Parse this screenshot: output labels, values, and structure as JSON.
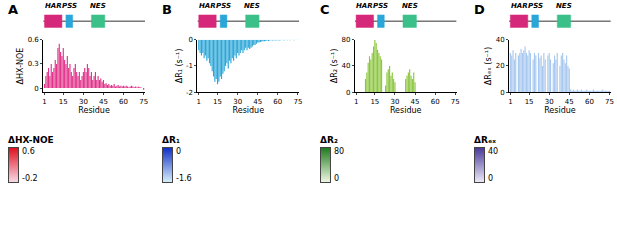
{
  "chart_data": [
    {
      "type": "bar",
      "panel": "A",
      "color": "#e0338a",
      "ylabel": "ΔHX-NOE",
      "xlabel": "Residue",
      "x": [
        1,
        2,
        3,
        4,
        5,
        6,
        7,
        8,
        9,
        10,
        11,
        12,
        13,
        14,
        15,
        16,
        17,
        18,
        19,
        20,
        21,
        22,
        23,
        24,
        25,
        26,
        27,
        28,
        29,
        30,
        31,
        32,
        33,
        34,
        35,
        36,
        37,
        38,
        39,
        40,
        41,
        42,
        43,
        44,
        45,
        46,
        47,
        48,
        49,
        50,
        51,
        52,
        53,
        54,
        55,
        56,
        57,
        58,
        59,
        60,
        61,
        62,
        63,
        64,
        65,
        66,
        67,
        68,
        69,
        70,
        71,
        72,
        73,
        74,
        75
      ],
      "values": [
        0.05,
        0.15,
        0.2,
        0.25,
        0.15,
        0.3,
        0.2,
        0.25,
        0.35,
        0.3,
        0.5,
        0.55,
        0.45,
        0.4,
        0.5,
        0.35,
        0.3,
        0.4,
        0.25,
        0.3,
        0.2,
        0.15,
        0.25,
        0.3,
        0.2,
        0.15,
        0.2,
        0.1,
        0.15,
        0.2,
        0.25,
        0.2,
        0.3,
        0.25,
        0.15,
        0.2,
        0.1,
        0.15,
        0.2,
        0.1,
        0.15,
        0.1,
        0.12,
        0.08,
        0.1,
        0.05,
        0.06,
        0.04,
        0.05,
        0.03,
        0.04,
        0.03,
        0.05,
        0.02,
        0.03,
        0.04,
        0.02,
        0.03,
        0.02,
        0.03,
        0.02,
        0.03,
        0.02,
        0.01,
        0.02,
        0.03,
        0.02,
        0.01,
        0.02,
        0.01,
        0.02,
        0.01,
        0.01,
        0,
        -0.02
      ],
      "xlim": [
        0,
        76
      ],
      "xticks": [
        1,
        15,
        30,
        45,
        60,
        75
      ],
      "ylim": [
        -0.05,
        0.6
      ],
      "yticks": [
        0,
        0.3,
        0.6
      ],
      "domains": [
        {
          "name": "HAR",
          "start": 1,
          "end": 14,
          "color": "#d6287a"
        },
        {
          "name": "PSS",
          "start": 17,
          "end": 22,
          "color": "#2aa6d8"
        },
        {
          "name": "NES",
          "start": 36,
          "end": 46,
          "color": "#3cc08a"
        }
      ],
      "colorbar": {
        "title": "ΔHX-NOE",
        "max": 0.6,
        "min": -0.2,
        "colors": [
          "#f7d9e6",
          "#e0101f"
        ]
      }
    },
    {
      "type": "bar",
      "panel": "B",
      "color": "#2aa6d8",
      "ylabel": "ΔR₁ (s⁻¹)",
      "xlabel": "Residue",
      "x": [
        1,
        2,
        3,
        4,
        5,
        6,
        7,
        8,
        9,
        10,
        11,
        12,
        13,
        14,
        15,
        16,
        17,
        18,
        19,
        20,
        21,
        22,
        23,
        24,
        25,
        26,
        27,
        28,
        29,
        30,
        31,
        32,
        33,
        34,
        35,
        36,
        37,
        38,
        39,
        40,
        41,
        42,
        43,
        44,
        45,
        46,
        47,
        48,
        49,
        50,
        51,
        52,
        53,
        54,
        55,
        56,
        57,
        58,
        59,
        60,
        61,
        62,
        63,
        64,
        65,
        66,
        67,
        68,
        69,
        70,
        71,
        72,
        73,
        74,
        75
      ],
      "values": [
        -0.4,
        -0.5,
        -0.6,
        -0.5,
        -0.7,
        -0.6,
        -0.8,
        -0.7,
        -0.9,
        -1.0,
        -1.2,
        -1.4,
        -1.6,
        -1.5,
        -1.7,
        -1.6,
        -1.4,
        -1.5,
        -1.3,
        -1.2,
        -1.0,
        -0.9,
        -1.1,
        -0.8,
        -0.9,
        -0.7,
        -0.8,
        -0.6,
        -0.7,
        -0.5,
        -0.6,
        -0.5,
        -0.4,
        -0.5,
        -0.4,
        -0.3,
        -0.4,
        -0.3,
        -0.35,
        -0.3,
        -0.25,
        -0.2,
        -0.2,
        -0.15,
        -0.1,
        -0.1,
        -0.08,
        -0.06,
        -0.05,
        -0.05,
        -0.04,
        -0.03,
        -0.04,
        -0.03,
        -0.02,
        -0.03,
        -0.02,
        -0.03,
        -0.02,
        -0.02,
        -0.03,
        -0.02,
        -0.01,
        -0.02,
        -0.02,
        -0.01,
        -0.02,
        -0.01,
        -0.02,
        -0.01,
        -0.01,
        -0.02,
        -0.01,
        -0.01,
        -0.01
      ],
      "xlim": [
        0,
        76
      ],
      "xticks": [
        1,
        15,
        30,
        45,
        60,
        75
      ],
      "ylim": [
        -2,
        0
      ],
      "yticks": [
        -2,
        -1,
        0
      ],
      "domains": [
        {
          "name": "HAR",
          "start": 1,
          "end": 14,
          "color": "#d6287a"
        },
        {
          "name": "PSS",
          "start": 17,
          "end": 22,
          "color": "#2aa6d8"
        },
        {
          "name": "NES",
          "start": 36,
          "end": 46,
          "color": "#3cc08a"
        }
      ],
      "colorbar": {
        "title": "ΔR₁",
        "max": 0,
        "min": -1.6,
        "colors": [
          "#d5eefa",
          "#1030c8"
        ]
      }
    },
    {
      "type": "bar",
      "panel": "C",
      "color": "#8cc63f",
      "ylabel": "ΔR₂ (s⁻¹)",
      "xlabel": "Residue",
      "x": [
        1,
        2,
        3,
        4,
        5,
        6,
        7,
        8,
        9,
        10,
        11,
        12,
        13,
        14,
        15,
        16,
        17,
        18,
        19,
        20,
        21,
        22,
        23,
        24,
        25,
        26,
        27,
        28,
        29,
        30,
        31,
        32,
        33,
        34,
        35,
        36,
        37,
        38,
        39,
        40,
        41,
        42,
        43,
        44,
        45,
        46,
        47,
        48,
        49,
        50,
        51,
        52,
        53,
        54,
        55,
        56,
        57,
        58,
        59,
        60,
        61,
        62,
        63,
        64,
        65,
        66,
        67,
        68,
        69,
        70,
        71,
        72,
        73,
        74,
        75
      ],
      "values": [
        0,
        0,
        0,
        0,
        0,
        0,
        0,
        20,
        30,
        45,
        55,
        50,
        60,
        70,
        80,
        75,
        65,
        60,
        55,
        50,
        0,
        0,
        10,
        30,
        35,
        40,
        25,
        30,
        20,
        15,
        0,
        0,
        0,
        0,
        0,
        0,
        0,
        20,
        25,
        30,
        35,
        25,
        20,
        30,
        15,
        0,
        0,
        0,
        0,
        0,
        0,
        0,
        0,
        0,
        0,
        0,
        0,
        0,
        0,
        0,
        0,
        0,
        0,
        0,
        0,
        0,
        0,
        0,
        0,
        0,
        0,
        0,
        0,
        0,
        0
      ],
      "xlim": [
        0,
        76
      ],
      "xticks": [
        1,
        15,
        30,
        45,
        60,
        75
      ],
      "ylim": [
        0,
        80
      ],
      "yticks": [
        0,
        40,
        80
      ],
      "domains": [
        {
          "name": "HAR",
          "start": 1,
          "end": 14,
          "color": "#d6287a"
        },
        {
          "name": "PSS",
          "start": 17,
          "end": 22,
          "color": "#2aa6d8"
        },
        {
          "name": "NES",
          "start": 36,
          "end": 46,
          "color": "#3cc08a"
        }
      ],
      "colorbar": {
        "title": "ΔR₂",
        "max": 80,
        "min": 0,
        "colors": [
          "#eef7e0",
          "#1f7a1f"
        ]
      }
    },
    {
      "type": "bar",
      "panel": "D",
      "color": "#a8c8ef",
      "ylabel": "ΔRₑₓ (s⁻¹)",
      "xlabel": "Residue",
      "x": [
        1,
        2,
        3,
        4,
        5,
        6,
        7,
        8,
        9,
        10,
        11,
        12,
        13,
        14,
        15,
        16,
        17,
        18,
        19,
        20,
        21,
        22,
        23,
        24,
        25,
        26,
        27,
        28,
        29,
        30,
        31,
        32,
        33,
        34,
        35,
        36,
        37,
        38,
        39,
        40,
        41,
        42,
        43,
        44,
        45,
        46,
        47,
        48,
        49,
        50,
        51,
        52,
        53,
        54,
        55,
        56,
        57,
        58,
        59,
        60,
        61,
        62,
        63,
        64,
        65,
        66,
        67,
        68,
        69,
        70,
        71,
        72,
        73,
        74,
        75
      ],
      "values": [
        30,
        28,
        32,
        25,
        30,
        0,
        28,
        30,
        33,
        30,
        32,
        35,
        30,
        28,
        32,
        30,
        0,
        25,
        30,
        28,
        0,
        30,
        26,
        28,
        20,
        30,
        25,
        0,
        28,
        30,
        25,
        0,
        22,
        28,
        25,
        30,
        0,
        20,
        28,
        30,
        25,
        22,
        28,
        20,
        18,
        2,
        1,
        2,
        1,
        1,
        2,
        1,
        1,
        2,
        1,
        1,
        1,
        2,
        1,
        1,
        1,
        1,
        2,
        1,
        1,
        1,
        1,
        1,
        1,
        2,
        1,
        1,
        1,
        1,
        1
      ],
      "xlim": [
        0,
        76
      ],
      "xticks": [
        1,
        15,
        30,
        45,
        60,
        75
      ],
      "ylim": [
        0,
        40
      ],
      "yticks": [
        0,
        20,
        40
      ],
      "domains": [
        {
          "name": "HAR",
          "start": 1,
          "end": 14,
          "color": "#d6287a"
        },
        {
          "name": "PSS",
          "start": 17,
          "end": 22,
          "color": "#2aa6d8"
        },
        {
          "name": "NES",
          "start": 36,
          "end": 46,
          "color": "#3cc08a"
        }
      ],
      "colorbar": {
        "title": "ΔRₑₓ",
        "max": 40,
        "min": 0,
        "colors": [
          "#ece8f6",
          "#4a3a9a"
        ]
      }
    }
  ]
}
